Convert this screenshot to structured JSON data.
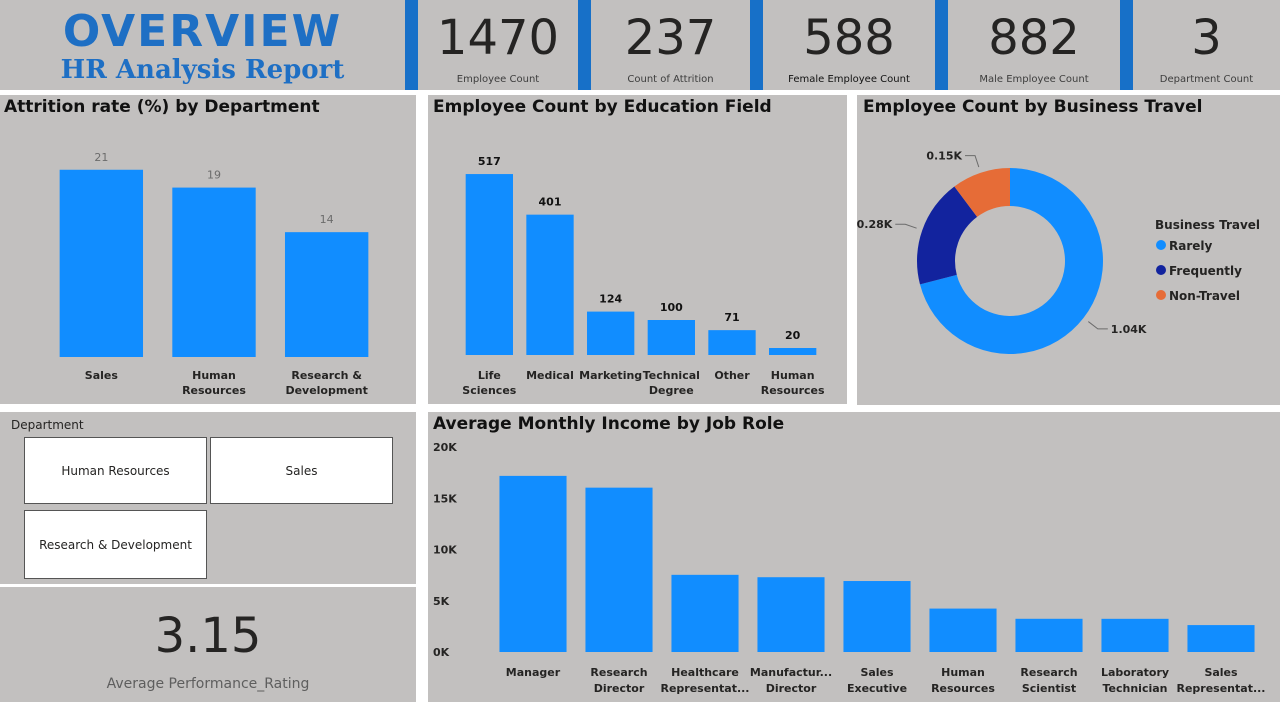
{
  "header": {
    "title": "OVERVIEW",
    "subtitle": "HR Analysis Report"
  },
  "kpis": [
    {
      "value": "1470",
      "label": "Employee Count"
    },
    {
      "value": "237",
      "label": "Count of Attrition"
    },
    {
      "value": "588",
      "label": "Female Employee Count"
    },
    {
      "value": "882",
      "label": "Male Employee Count"
    },
    {
      "value": "3",
      "label": "Department Count"
    }
  ],
  "slicer": {
    "header": "Department",
    "options": [
      "Human Resources",
      "Sales",
      "Research & Development"
    ]
  },
  "performance": {
    "value": "3.15",
    "label": "Average Performance_Rating"
  },
  "colors": {
    "bar": "#118dff",
    "rarely": "#118dff",
    "frequently": "#12239e",
    "non_travel": "#e66c37",
    "panel_bg": "#c2c0bf",
    "accent": "#1770c8",
    "title_blue": "#1e6fc4"
  },
  "chart_data": [
    {
      "id": "attrition",
      "type": "bar",
      "title": "Attrition rate (%) by Department",
      "categories": [
        [
          "Sales"
        ],
        [
          "Human",
          "Resources"
        ],
        [
          "Research &",
          "Development"
        ]
      ],
      "values": [
        21,
        19,
        14
      ],
      "value_labels": [
        "21",
        "19",
        "14"
      ],
      "ylim": [
        0,
        24
      ]
    },
    {
      "id": "education",
      "type": "bar",
      "title": "Employee Count by Education Field",
      "categories": [
        [
          "Life",
          "Sciences"
        ],
        [
          "Medical"
        ],
        [
          "Marketing"
        ],
        [
          "Technical",
          "Degree"
        ],
        [
          "Other"
        ],
        [
          "Human",
          "Resources"
        ]
      ],
      "values": [
        517,
        401,
        124,
        100,
        71,
        20
      ],
      "value_labels": [
        "517",
        "401",
        "124",
        "100",
        "71",
        "20"
      ],
      "ylim": [
        0,
        600
      ]
    },
    {
      "id": "travel",
      "type": "pie",
      "title": "Employee Count by Business Travel",
      "legend_title": "Business Travel",
      "legend_position": "right",
      "slices": [
        {
          "label": "Rarely",
          "value": 1043,
          "display": "1.04K"
        },
        {
          "label": "Frequently",
          "value": 277,
          "display": "0.28K"
        },
        {
          "label": "Non-Travel",
          "value": 150,
          "display": "0.15K"
        }
      ]
    },
    {
      "id": "income",
      "type": "bar",
      "title": "Average Monthly Income by Job Role",
      "categories": [
        [
          "Manager"
        ],
        [
          "Research",
          "Director"
        ],
        [
          "Healthcare",
          "Representat..."
        ],
        [
          "Manufactur...",
          "Director"
        ],
        [
          "Sales",
          "Executive"
        ],
        [
          "Human",
          "Resources"
        ],
        [
          "Research",
          "Scientist"
        ],
        [
          "Laboratory",
          "Technician"
        ],
        [
          "Sales",
          "Representat..."
        ]
      ],
      "values": [
        17182,
        16034,
        7529,
        7295,
        6924,
        4236,
        3240,
        3237,
        2626
      ],
      "ylim": [
        0,
        20000
      ],
      "yticks": [
        "0K",
        "5K",
        "10K",
        "15K",
        "20K"
      ],
      "grid": false
    }
  ]
}
